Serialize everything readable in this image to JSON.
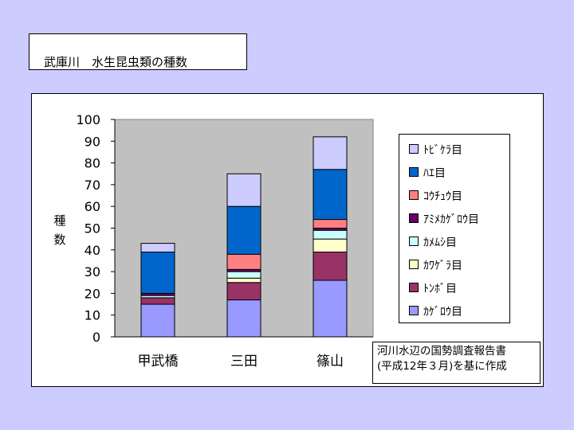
{
  "title": "武庫川　水生昆虫類の種数",
  "source": [
    "河川水辺の国勢調査報告書",
    "(平成12年３月)を基に作成"
  ],
  "chart_data": {
    "type": "bar",
    "stacked": true,
    "categories": [
      "甲武橋",
      "三田",
      "篠山"
    ],
    "ylabel": "種数",
    "ylim": [
      0,
      100
    ],
    "yticks": [
      0,
      10,
      20,
      30,
      40,
      50,
      60,
      70,
      80,
      90,
      100
    ],
    "grid": false,
    "legend_position": "right",
    "series": [
      {
        "name": "ｶｹﾞﾛｳ目",
        "color": "#9999ff",
        "values": [
          15,
          17,
          26
        ]
      },
      {
        "name": "ﾄﾝﾎﾞ目",
        "color": "#993366",
        "values": [
          3,
          8,
          13
        ]
      },
      {
        "name": "ｶﾜｹﾞﾗ目",
        "color": "#ffffcc",
        "values": [
          0,
          2,
          6
        ]
      },
      {
        "name": "ｶﾒﾑｼ目",
        "color": "#ccffff",
        "values": [
          1,
          3,
          4
        ]
      },
      {
        "name": "ｱﾐﾒｶｹﾞﾛｳ目",
        "color": "#660066",
        "values": [
          1,
          1,
          1
        ]
      },
      {
        "name": "ｺｳﾁｭｳ目",
        "color": "#ff8080",
        "values": [
          0,
          7,
          4
        ]
      },
      {
        "name": "ﾊｴ目",
        "color": "#0066cc",
        "values": [
          19,
          22,
          23
        ]
      },
      {
        "name": "ﾄﾋﾞｹﾗ目",
        "color": "#ccccff",
        "values": [
          4,
          15,
          15
        ]
      }
    ],
    "plot_background": "#c0c0c0"
  }
}
